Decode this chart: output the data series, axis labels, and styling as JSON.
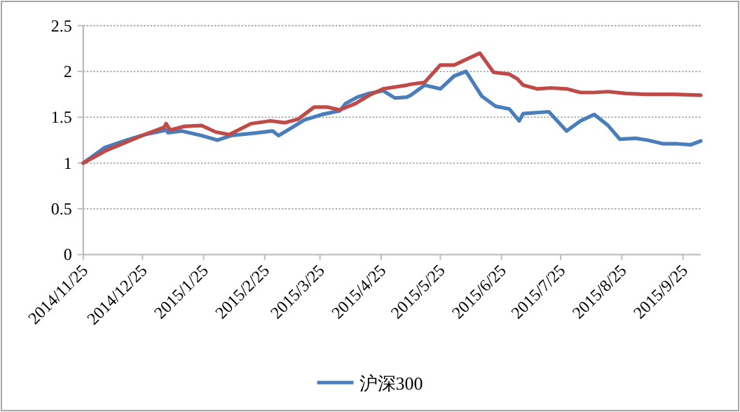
{
  "chart_data": {
    "type": "line",
    "xlim": [
      "2014-11-25",
      "2015-10-04"
    ],
    "ylim": [
      0,
      2.5
    ],
    "xticks": [
      {
        "value": "2014-11-25",
        "label": "2014/11/25"
      },
      {
        "value": "2014-12-25",
        "label": "2014/12/25"
      },
      {
        "value": "2015-01-25",
        "label": "2015/1/25"
      },
      {
        "value": "2015-02-25",
        "label": "2015/2/25"
      },
      {
        "value": "2015-03-25",
        "label": "2015/3/25"
      },
      {
        "value": "2015-04-25",
        "label": "2015/4/25"
      },
      {
        "value": "2015-05-25",
        "label": "2015/5/25"
      },
      {
        "value": "2015-06-25",
        "label": "2015/6/25"
      },
      {
        "value": "2015-07-25",
        "label": "2015/7/25"
      },
      {
        "value": "2015-08-25",
        "label": "2015/8/25"
      },
      {
        "value": "2015-09-25",
        "label": "2015/9/25"
      }
    ],
    "yticks": [
      0,
      0.5,
      1,
      1.5,
      2,
      2.5
    ],
    "grid": "y",
    "legend": "bottom",
    "series": [
      {
        "name": "沪深300",
        "color": "#4a7ebb",
        "x": [
          "2014-11-25",
          "2014-12-06",
          "2014-12-17",
          "2014-12-26",
          "2015-01-06",
          "2015-01-07",
          "2015-01-14",
          "2015-01-24",
          "2015-02-01",
          "2015-02-08",
          "2015-02-21",
          "2015-03-01",
          "2015-03-04",
          "2015-03-11",
          "2015-03-17",
          "2015-03-26",
          "2015-04-04",
          "2015-04-07",
          "2015-04-13",
          "2015-04-19",
          "2015-04-26",
          "2015-05-02",
          "2015-05-08",
          "2015-05-10",
          "2015-05-17",
          "2015-05-25",
          "2015-06-01",
          "2015-06-07",
          "2015-06-15",
          "2015-06-22",
          "2015-06-29",
          "2015-07-04",
          "2015-07-06",
          "2015-07-19",
          "2015-07-28",
          "2015-08-04",
          "2015-08-11",
          "2015-08-18",
          "2015-08-24",
          "2015-09-01",
          "2015-09-07",
          "2015-09-15",
          "2015-09-22",
          "2015-09-29",
          "2015-10-04"
        ],
        "values": [
          1.0,
          1.17,
          1.25,
          1.31,
          1.36,
          1.33,
          1.35,
          1.3,
          1.25,
          1.3,
          1.33,
          1.35,
          1.3,
          1.39,
          1.47,
          1.53,
          1.57,
          1.65,
          1.72,
          1.76,
          1.79,
          1.71,
          1.72,
          1.74,
          1.85,
          1.81,
          1.95,
          2.0,
          1.73,
          1.62,
          1.59,
          1.46,
          1.54,
          1.56,
          1.35,
          1.46,
          1.53,
          1.41,
          1.26,
          1.27,
          1.25,
          1.21,
          1.21,
          1.2,
          1.24
        ]
      },
      {
        "color": "#be4b48",
        "x": [
          "2014-11-25",
          "2014-12-06",
          "2014-12-26",
          "2015-01-05",
          "2015-01-06",
          "2015-01-08",
          "2015-01-15",
          "2015-01-24",
          "2015-01-31",
          "2015-02-07",
          "2015-02-18",
          "2015-02-28",
          "2015-03-07",
          "2015-03-14",
          "2015-03-22",
          "2015-03-29",
          "2015-04-04",
          "2015-04-12",
          "2015-04-19",
          "2015-04-26",
          "2015-05-08",
          "2015-05-10",
          "2015-05-17",
          "2015-05-25",
          "2015-06-01",
          "2015-06-08",
          "2015-06-14",
          "2015-06-21",
          "2015-06-29",
          "2015-07-03",
          "2015-07-06",
          "2015-07-13",
          "2015-07-20",
          "2015-07-28",
          "2015-08-04",
          "2015-08-11",
          "2015-08-18",
          "2015-08-27",
          "2015-09-06",
          "2015-09-20",
          "2015-10-04"
        ],
        "values": [
          1.0,
          1.13,
          1.31,
          1.39,
          1.43,
          1.36,
          1.4,
          1.41,
          1.34,
          1.31,
          1.43,
          1.46,
          1.44,
          1.48,
          1.61,
          1.61,
          1.58,
          1.65,
          1.74,
          1.81,
          1.85,
          1.86,
          1.88,
          2.07,
          2.07,
          2.14,
          2.2,
          1.99,
          1.97,
          1.92,
          1.85,
          1.81,
          1.82,
          1.81,
          1.77,
          1.77,
          1.78,
          1.76,
          1.75,
          1.75,
          1.74
        ]
      }
    ]
  }
}
